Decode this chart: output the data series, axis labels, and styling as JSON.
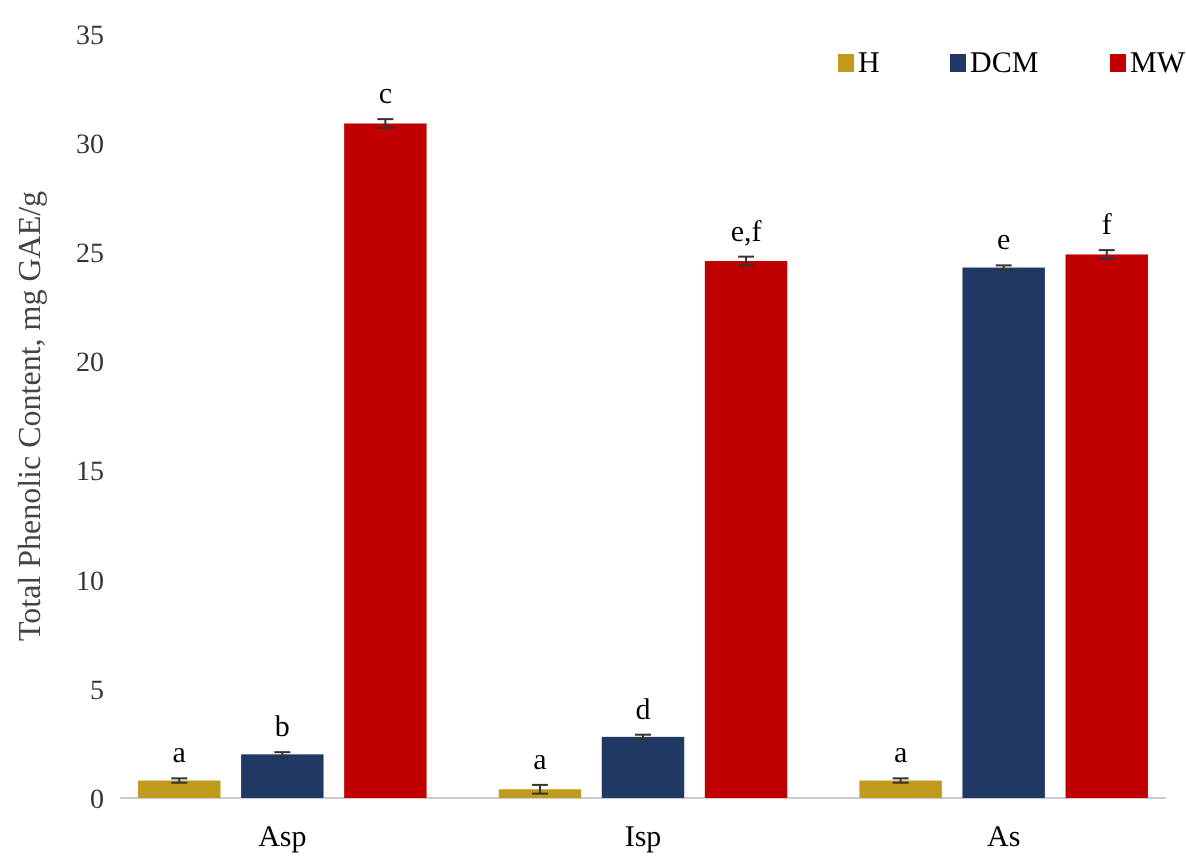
{
  "chart_data": {
    "type": "bar",
    "ylabel": "Total Phenolic Content, mg GAE/g",
    "categories": [
      "Asp",
      "Isp",
      "As"
    ],
    "series": [
      {
        "name": "H",
        "color": "#bf9a1c",
        "values": [
          0.8,
          0.4,
          0.8
        ],
        "errors": [
          0.1,
          0.2,
          0.1
        ],
        "value_labels": [
          "a",
          "a",
          "a"
        ]
      },
      {
        "name": "DCM",
        "color": "#1f3864",
        "values": [
          2.0,
          2.8,
          24.3
        ],
        "errors": [
          0.1,
          0.1,
          0.1
        ],
        "value_labels": [
          "b",
          "d",
          "e"
        ]
      },
      {
        "name": "MW",
        "color": "#c00000",
        "values": [
          30.9,
          24.6,
          24.9
        ],
        "errors": [
          0.2,
          0.2,
          0.2
        ],
        "value_labels": [
          "c",
          "e,f",
          "f"
        ]
      }
    ],
    "ylim": [
      0,
      35
    ],
    "yticks": [
      0,
      5,
      10,
      15,
      20,
      25,
      30,
      35
    ],
    "grid": false,
    "legend": "top right"
  }
}
